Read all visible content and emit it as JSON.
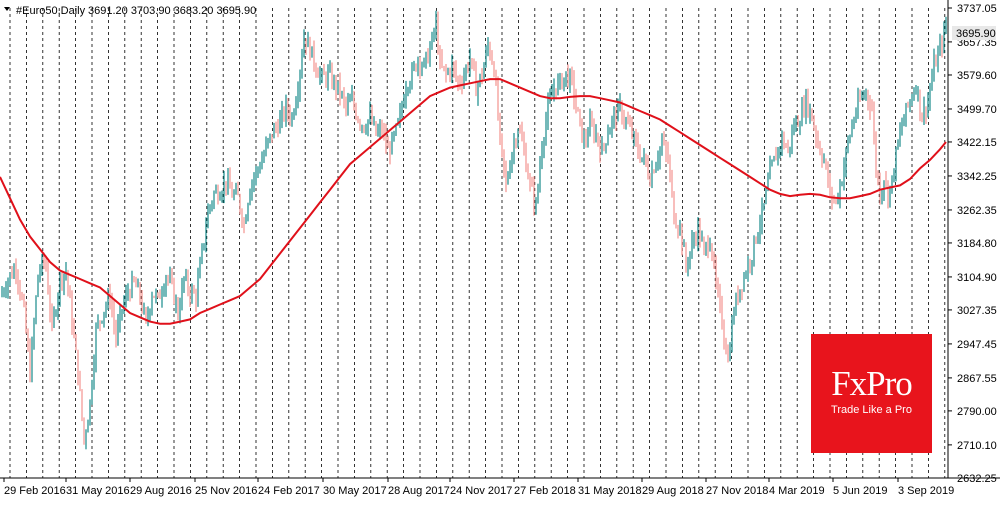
{
  "header": {
    "symbol": "#Euro50,Daily",
    "ohlc": "3691.20 3703.90 3683.20 3695.90"
  },
  "price_tag": "3695.90",
  "logo": {
    "brand": "FxPro",
    "tagline": "Trade Like a Pro"
  },
  "colors": {
    "bull": "#168a8a",
    "bear": "#f4928e",
    "ma": "#e0101a",
    "grid": "#000000",
    "price_tag_bg": "#e8e8e8",
    "logo_bg": "#e8141c"
  },
  "chart_data": {
    "type": "candlestick",
    "ylim": [
      2632.25,
      3737.05
    ],
    "y_ticks": [
      "3737.05",
      "3657.35",
      "3579.60",
      "3499.70",
      "3422.15",
      "3342.25",
      "3262.35",
      "3184.80",
      "3104.90",
      "3027.35",
      "2947.45",
      "2867.55",
      "2790.00",
      "2710.10",
      "2632.25"
    ],
    "x_labels": [
      "29 Feb 2016",
      "31 May 2016",
      "29 Aug 2016",
      "25 Nov 2016",
      "24 Feb 2017",
      "30 May 2017",
      "28 Aug 2017",
      "24 Nov 2017",
      "27 Feb 2018",
      "31 May 2018",
      "29 Aug 2018",
      "27 Nov 2018",
      "4 Mar 2019",
      "5 Jun 2019",
      "3 Sep 2019"
    ],
    "close_path": [
      [
        0,
        3060
      ],
      [
        8,
        3100
      ],
      [
        16,
        3130
      ],
      [
        24,
        3020
      ],
      [
        30,
        2880
      ],
      [
        38,
        3110
      ],
      [
        45,
        3150
      ],
      [
        52,
        2980
      ],
      [
        60,
        3100
      ],
      [
        66,
        3120
      ],
      [
        72,
        3000
      ],
      [
        78,
        2880
      ],
      [
        84,
        2720
      ],
      [
        90,
        2810
      ],
      [
        96,
        2980
      ],
      [
        104,
        3030
      ],
      [
        110,
        3060
      ],
      [
        116,
        2960
      ],
      [
        122,
        3030
      ],
      [
        128,
        3070
      ],
      [
        134,
        3090
      ],
      [
        140,
        3060
      ],
      [
        146,
        2990
      ],
      [
        152,
        3070
      ],
      [
        158,
        3050
      ],
      [
        166,
        3110
      ],
      [
        172,
        3080
      ],
      [
        178,
        3020
      ],
      [
        184,
        3100
      ],
      [
        190,
        3070
      ],
      [
        196,
        3060
      ],
      [
        202,
        3160
      ],
      [
        208,
        3260
      ],
      [
        214,
        3300
      ],
      [
        220,
        3310
      ],
      [
        226,
        3330
      ],
      [
        232,
        3300
      ],
      [
        238,
        3290
      ],
      [
        244,
        3230
      ],
      [
        250,
        3320
      ],
      [
        256,
        3350
      ],
      [
        262,
        3380
      ],
      [
        268,
        3420
      ],
      [
        274,
        3450
      ],
      [
        280,
        3470
      ],
      [
        286,
        3500
      ],
      [
        292,
        3480
      ],
      [
        298,
        3560
      ],
      [
        304,
        3670
      ],
      [
        310,
        3640
      ],
      [
        316,
        3600
      ],
      [
        322,
        3570
      ],
      [
        328,
        3580
      ],
      [
        334,
        3560
      ],
      [
        340,
        3540
      ],
      [
        346,
        3500
      ],
      [
        352,
        3520
      ],
      [
        358,
        3480
      ],
      [
        364,
        3460
      ],
      [
        370,
        3480
      ],
      [
        376,
        3440
      ],
      [
        382,
        3450
      ],
      [
        388,
        3400
      ],
      [
        394,
        3430
      ],
      [
        400,
        3480
      ],
      [
        406,
        3560
      ],
      [
        412,
        3580
      ],
      [
        418,
        3620
      ],
      [
        424,
        3600
      ],
      [
        430,
        3640
      ],
      [
        436,
        3700
      ],
      [
        440,
        3600
      ],
      [
        446,
        3580
      ],
      [
        452,
        3600
      ],
      [
        458,
        3560
      ],
      [
        464,
        3580
      ],
      [
        470,
        3620
      ],
      [
        476,
        3550
      ],
      [
        482,
        3580
      ],
      [
        488,
        3650
      ],
      [
        494,
        3600
      ],
      [
        500,
        3420
      ],
      [
        506,
        3320
      ],
      [
        512,
        3400
      ],
      [
        518,
        3460
      ],
      [
        524,
        3400
      ],
      [
        530,
        3320
      ],
      [
        536,
        3270
      ],
      [
        542,
        3420
      ],
      [
        548,
        3500
      ],
      [
        554,
        3550
      ],
      [
        560,
        3560
      ],
      [
        566,
        3580
      ],
      [
        572,
        3560
      ],
      [
        578,
        3480
      ],
      [
        584,
        3420
      ],
      [
        590,
        3460
      ],
      [
        596,
        3440
      ],
      [
        602,
        3400
      ],
      [
        608,
        3450
      ],
      [
        614,
        3480
      ],
      [
        620,
        3500
      ],
      [
        626,
        3470
      ],
      [
        632,
        3440
      ],
      [
        638,
        3400
      ],
      [
        644,
        3380
      ],
      [
        650,
        3340
      ],
      [
        656,
        3380
      ],
      [
        662,
        3420
      ],
      [
        668,
        3380
      ],
      [
        674,
        3250
      ],
      [
        680,
        3220
      ],
      [
        686,
        3130
      ],
      [
        692,
        3180
      ],
      [
        698,
        3220
      ],
      [
        704,
        3160
      ],
      [
        710,
        3200
      ],
      [
        716,
        3080
      ],
      [
        722,
        3000
      ],
      [
        728,
        2910
      ],
      [
        734,
        3030
      ],
      [
        740,
        3080
      ],
      [
        746,
        3120
      ],
      [
        752,
        3160
      ],
      [
        758,
        3220
      ],
      [
        764,
        3270
      ],
      [
        770,
        3350
      ],
      [
        776,
        3390
      ],
      [
        782,
        3430
      ],
      [
        788,
        3400
      ],
      [
        794,
        3460
      ],
      [
        800,
        3480
      ],
      [
        806,
        3520
      ],
      [
        812,
        3480
      ],
      [
        818,
        3420
      ],
      [
        824,
        3380
      ],
      [
        830,
        3300
      ],
      [
        836,
        3280
      ],
      [
        842,
        3340
      ],
      [
        848,
        3420
      ],
      [
        854,
        3480
      ],
      [
        860,
        3520
      ],
      [
        866,
        3540
      ],
      [
        872,
        3500
      ],
      [
        876,
        3360
      ],
      [
        880,
        3300
      ],
      [
        884,
        3340
      ],
      [
        888,
        3300
      ],
      [
        892,
        3330
      ],
      [
        898,
        3420
      ],
      [
        904,
        3480
      ],
      [
        910,
        3520
      ],
      [
        916,
        3560
      ],
      [
        922,
        3480
      ],
      [
        928,
        3520
      ],
      [
        934,
        3600
      ],
      [
        940,
        3640
      ],
      [
        946,
        3696
      ]
    ],
    "ma_path": [
      [
        0,
        3340
      ],
      [
        10,
        3290
      ],
      [
        20,
        3240
      ],
      [
        30,
        3200
      ],
      [
        40,
        3170
      ],
      [
        50,
        3140
      ],
      [
        60,
        3120
      ],
      [
        70,
        3110
      ],
      [
        80,
        3100
      ],
      [
        90,
        3090
      ],
      [
        100,
        3080
      ],
      [
        110,
        3060
      ],
      [
        120,
        3040
      ],
      [
        130,
        3020
      ],
      [
        140,
        3010
      ],
      [
        150,
        3000
      ],
      [
        160,
        2995
      ],
      [
        170,
        2995
      ],
      [
        180,
        3000
      ],
      [
        190,
        3005
      ],
      [
        200,
        3020
      ],
      [
        210,
        3030
      ],
      [
        220,
        3040
      ],
      [
        230,
        3050
      ],
      [
        240,
        3060
      ],
      [
        250,
        3080
      ],
      [
        260,
        3100
      ],
      [
        270,
        3130
      ],
      [
        280,
        3160
      ],
      [
        290,
        3190
      ],
      [
        300,
        3220
      ],
      [
        310,
        3250
      ],
      [
        320,
        3280
      ],
      [
        330,
        3310
      ],
      [
        340,
        3340
      ],
      [
        350,
        3370
      ],
      [
        360,
        3390
      ],
      [
        370,
        3410
      ],
      [
        380,
        3430
      ],
      [
        390,
        3450
      ],
      [
        400,
        3470
      ],
      [
        410,
        3490
      ],
      [
        420,
        3510
      ],
      [
        430,
        3530
      ],
      [
        440,
        3540
      ],
      [
        450,
        3550
      ],
      [
        460,
        3555
      ],
      [
        470,
        3560
      ],
      [
        480,
        3565
      ],
      [
        490,
        3570
      ],
      [
        500,
        3570
      ],
      [
        510,
        3560
      ],
      [
        520,
        3550
      ],
      [
        530,
        3540
      ],
      [
        540,
        3530
      ],
      [
        550,
        3525
      ],
      [
        560,
        3525
      ],
      [
        570,
        3528
      ],
      [
        580,
        3530
      ],
      [
        590,
        3530
      ],
      [
        600,
        3525
      ],
      [
        610,
        3520
      ],
      [
        620,
        3515
      ],
      [
        630,
        3505
      ],
      [
        640,
        3495
      ],
      [
        650,
        3485
      ],
      [
        660,
        3475
      ],
      [
        670,
        3460
      ],
      [
        680,
        3445
      ],
      [
        690,
        3430
      ],
      [
        700,
        3415
      ],
      [
        710,
        3400
      ],
      [
        720,
        3385
      ],
      [
        730,
        3370
      ],
      [
        740,
        3355
      ],
      [
        750,
        3340
      ],
      [
        760,
        3325
      ],
      [
        770,
        3310
      ],
      [
        780,
        3300
      ],
      [
        790,
        3295
      ],
      [
        800,
        3298
      ],
      [
        810,
        3300
      ],
      [
        820,
        3298
      ],
      [
        830,
        3292
      ],
      [
        840,
        3290
      ],
      [
        850,
        3290
      ],
      [
        860,
        3295
      ],
      [
        870,
        3300
      ],
      [
        880,
        3310
      ],
      [
        890,
        3315
      ],
      [
        900,
        3320
      ],
      [
        910,
        3335
      ],
      [
        920,
        3360
      ],
      [
        930,
        3380
      ],
      [
        940,
        3405
      ],
      [
        946,
        3422
      ]
    ]
  }
}
